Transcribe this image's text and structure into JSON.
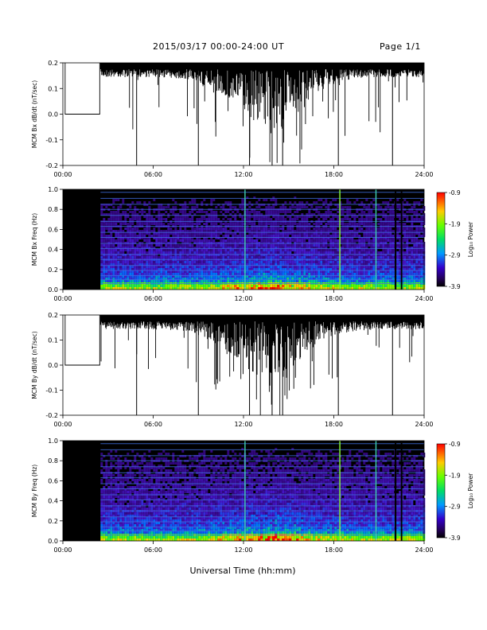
{
  "header": {
    "date_range": "2015/03/17  00:00-24:00 UT",
    "page": "Page 1/1"
  },
  "colorbar": {
    "label": "Log₁₀ Power",
    "ticks": [
      "-0.9",
      "-1.9",
      "-2.9",
      "-3.9"
    ]
  },
  "x_axis": {
    "label": "Universal Time (hh:mm)",
    "ticks": [
      "00:00",
      "06:00",
      "12:00",
      "18:00",
      "24:00"
    ]
  },
  "chart_data": [
    {
      "type": "line",
      "ylabel": "MCM Bx dB/dt (nT/sec)",
      "xlim": [
        0,
        24
      ],
      "ylim": [
        -0.2,
        0.2
      ],
      "y_ticks": [
        "0.2",
        "0.1",
        "0.0",
        "-0.1",
        "-0.2"
      ],
      "data_gap": [
        0.15,
        2.45
      ],
      "features": {
        "quiet_fill_top": 0.2,
        "storm_peak_hours": [
          13,
          15
        ]
      }
    },
    {
      "type": "heatmap",
      "ylabel": "MCM Bx Freq (Hz)",
      "xlim": [
        0,
        24
      ],
      "ylim": [
        0,
        1.0
      ],
      "y_ticks": [
        "1.0",
        "0.8",
        "0.6",
        "0.4",
        "0.2",
        "0.0"
      ],
      "colorbar_range": [
        -3.9,
        -0.9
      ],
      "data_gap": [
        0.15,
        2.45
      ],
      "interference_lines_hz": [
        0.06,
        0.1,
        0.14,
        0.19,
        0.24,
        0.3,
        0.35,
        0.41,
        0.46,
        0.52,
        0.57,
        0.63,
        0.68,
        0.74,
        0.8,
        0.85,
        0.91,
        0.97
      ],
      "broadband_spikes_hours": [
        12.1,
        18.4,
        20.8,
        22.1,
        22.5
      ]
    },
    {
      "type": "line",
      "ylabel": "MCM By dB/dt (nT/sec)",
      "xlim": [
        0,
        24
      ],
      "ylim": [
        -0.2,
        0.2
      ],
      "y_ticks": [
        "0.2",
        "0.1",
        "0.0",
        "-0.1",
        "-0.2"
      ],
      "data_gap": [
        0.15,
        2.45
      ],
      "features": {
        "quiet_fill_top": 0.2,
        "storm_peak_hours": [
          13,
          15
        ]
      }
    },
    {
      "type": "heatmap",
      "ylabel": "MCM By Freq (Hz)",
      "xlim": [
        0,
        24
      ],
      "ylim": [
        0,
        1.0
      ],
      "y_ticks": [
        "1.0",
        "0.8",
        "0.6",
        "0.4",
        "0.2",
        "0.0"
      ],
      "colorbar_range": [
        -3.9,
        -0.9
      ],
      "data_gap": [
        0.15,
        2.45
      ],
      "interference_lines_hz": [
        0.06,
        0.1,
        0.14,
        0.19,
        0.24,
        0.3,
        0.35,
        0.41,
        0.46,
        0.52,
        0.57,
        0.63,
        0.68,
        0.74,
        0.8,
        0.85,
        0.91,
        0.97
      ],
      "broadband_spikes_hours": [
        12.1,
        18.4,
        20.8,
        22.1,
        22.5
      ]
    }
  ]
}
